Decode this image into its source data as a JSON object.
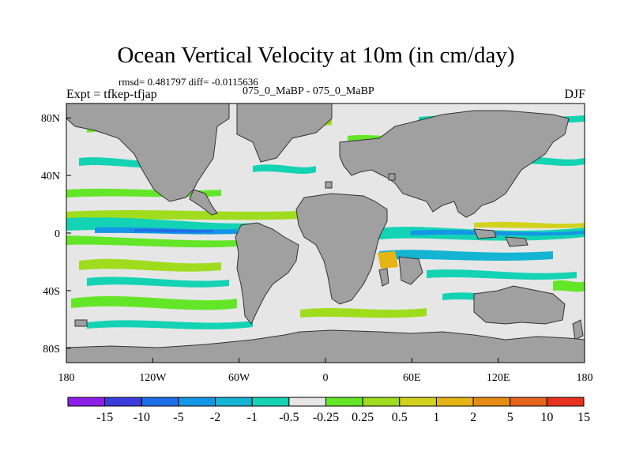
{
  "title": "Ocean Vertical Velocity at 10m (in cm/day)",
  "stats_line": "rmsd= 0.481797 diff= -0.0115636",
  "subtitle": "075_0_MaBP - 075_0_MaBP",
  "experiment_label": "Expt = tfkep-tfjap",
  "season_label": "DJF",
  "map": {
    "lon_range": [
      -180,
      180
    ],
    "lat_range": [
      -90,
      90
    ],
    "land_color": "#a0a0a0",
    "near_zero_color": "#e6e6e6",
    "y_tick_labels": [
      {
        "lat": 80,
        "label": "80N"
      },
      {
        "lat": 40,
        "label": "40N"
      },
      {
        "lat": 0,
        "label": "0"
      },
      {
        "lat": -40,
        "label": "40S"
      },
      {
        "lat": -80,
        "label": "80S"
      }
    ],
    "x_tick_labels": [
      {
        "lon": -180,
        "label": "180"
      },
      {
        "lon": -120,
        "label": "120W"
      },
      {
        "lon": -60,
        "label": "60W"
      },
      {
        "lon": 0,
        "label": "0"
      },
      {
        "lon": 60,
        "label": "60E"
      },
      {
        "lon": 120,
        "label": "120E"
      },
      {
        "lon": 180,
        "label": "180"
      }
    ]
  },
  "colorbar": {
    "colors": [
      "#8c1ee6",
      "#3c3cdc",
      "#1e6ee6",
      "#1496e6",
      "#14b4d2",
      "#14d2b4",
      "#e6e6e6",
      "#64e628",
      "#a0dc1e",
      "#d2d21e",
      "#e6b414",
      "#e68c14",
      "#e6641e",
      "#e6321e"
    ],
    "labels": [
      "-15",
      "-10",
      "-5",
      "-2",
      "-1",
      "-0.5",
      "-0.25",
      "0.25",
      "0.5",
      "1",
      "2",
      "5",
      "10",
      "15"
    ]
  }
}
